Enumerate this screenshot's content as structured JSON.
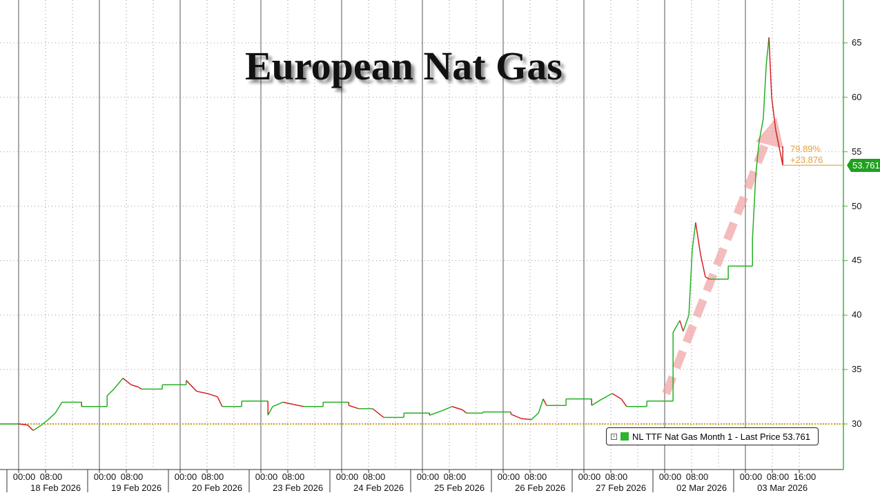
{
  "chart_data": {
    "type": "line",
    "title": "European Nat Gas",
    "ylim": [
      25,
      68
    ],
    "yticks": [
      30,
      35,
      40,
      45,
      50,
      55,
      60,
      65
    ],
    "grid": true,
    "legend_placement": "bottom-right",
    "legend": "NL TTF Nat Gas Month 1 - Last Price 53.761",
    "last_price": "53.761",
    "reference_line": 30.0,
    "annotation_pct": "79.89%",
    "annotation_change": "+23.876",
    "colors": {
      "up": "#22b022",
      "down": "#d02020",
      "axis": "#39b539",
      "reference": "#d4a020",
      "arrow": "#f0a0a0",
      "last_box": "#1fa01f"
    },
    "days": [
      "18 Feb 2026",
      "19 Feb 2026",
      "20 Feb 2026",
      "23 Feb 2026",
      "24 Feb 2026",
      "25 Feb 2026",
      "26 Feb 2026",
      "27 Feb 2026",
      "02 Mar 2026",
      "03 Mar 2026"
    ],
    "hour_labels": [
      "00:00",
      "08:00"
    ],
    "last_day_extra_label": "16:00",
    "points": [
      [
        0,
        0,
        30.0
      ],
      [
        0,
        2.7,
        29.9
      ],
      [
        0,
        4.3,
        29.4
      ],
      [
        0,
        6.8,
        29.9
      ],
      [
        0,
        8.8,
        30.4
      ],
      [
        0,
        10.9,
        31.0
      ],
      [
        0,
        12.9,
        32.0
      ],
      [
        0,
        18.7,
        32.0
      ],
      [
        0,
        18.7,
        31.6
      ],
      [
        1,
        2.3,
        31.6
      ],
      [
        1,
        2.3,
        32.6
      ],
      [
        1,
        4.3,
        33.2
      ],
      [
        1,
        7.0,
        34.2
      ],
      [
        1,
        9.4,
        33.6
      ],
      [
        1,
        11.5,
        33.4
      ],
      [
        1,
        12.5,
        33.2
      ],
      [
        1,
        18.7,
        33.2
      ],
      [
        1,
        18.7,
        33.6
      ],
      [
        2,
        1.8,
        33.6
      ],
      [
        2,
        1.8,
        34.0
      ],
      [
        2,
        4.9,
        33.0
      ],
      [
        2,
        8.0,
        32.8
      ],
      [
        2,
        11.1,
        32.5
      ],
      [
        2,
        12.5,
        31.6
      ],
      [
        2,
        18.3,
        31.6
      ],
      [
        2,
        18.3,
        32.1
      ],
      [
        3,
        2.1,
        32.1
      ],
      [
        3,
        2.1,
        30.8
      ],
      [
        3,
        3.5,
        31.6
      ],
      [
        3,
        6.6,
        32.0
      ],
      [
        3,
        9.6,
        31.8
      ],
      [
        3,
        12.7,
        31.6
      ],
      [
        3,
        18.5,
        31.6
      ],
      [
        3,
        18.5,
        32.0
      ],
      [
        4,
        2.1,
        32.0
      ],
      [
        4,
        2.1,
        31.7
      ],
      [
        4,
        5.1,
        31.4
      ],
      [
        4,
        9.2,
        31.4
      ],
      [
        4,
        12.5,
        30.6
      ],
      [
        4,
        18.5,
        30.6
      ],
      [
        4,
        18.5,
        31.0
      ],
      [
        5,
        2.1,
        31.0
      ],
      [
        5,
        2.1,
        30.8
      ],
      [
        5,
        5.7,
        31.2
      ],
      [
        5,
        8.8,
        31.6
      ],
      [
        5,
        11.9,
        31.3
      ],
      [
        5,
        13.1,
        31.0
      ],
      [
        5,
        18.0,
        31.0
      ],
      [
        5,
        18.0,
        31.1
      ],
      [
        6,
        2.3,
        31.1
      ],
      [
        6,
        2.3,
        30.9
      ],
      [
        6,
        5.3,
        30.5
      ],
      [
        6,
        8.4,
        30.4
      ],
      [
        6,
        10.5,
        31.0
      ],
      [
        6,
        11.9,
        32.3
      ],
      [
        6,
        12.9,
        31.7
      ],
      [
        6,
        18.7,
        31.7
      ],
      [
        6,
        18.7,
        32.3
      ],
      [
        7,
        2.3,
        32.3
      ],
      [
        7,
        2.3,
        31.7
      ],
      [
        7,
        4.9,
        32.2
      ],
      [
        7,
        8.4,
        32.8
      ],
      [
        7,
        11.1,
        32.3
      ],
      [
        7,
        12.7,
        31.6
      ],
      [
        7,
        18.7,
        31.6
      ],
      [
        7,
        18.7,
        32.1
      ],
      [
        8,
        2.5,
        32.1
      ],
      [
        8,
        2.5,
        38.4
      ],
      [
        8,
        4.5,
        39.5
      ],
      [
        8,
        5.5,
        38.5
      ],
      [
        8,
        7.2,
        40.0
      ],
      [
        8,
        8.2,
        46.0
      ],
      [
        8,
        9.2,
        48.5
      ],
      [
        8,
        10.7,
        45.5
      ],
      [
        8,
        12.1,
        43.5
      ],
      [
        8,
        13.3,
        43.3
      ],
      [
        8,
        18.9,
        43.3
      ],
      [
        8,
        18.9,
        44.5
      ],
      [
        9,
        2.1,
        44.5
      ],
      [
        9,
        2.1,
        47.0
      ],
      [
        9,
        3.1,
        53.0
      ],
      [
        9,
        4.1,
        56.0
      ],
      [
        9,
        5.3,
        58.0
      ],
      [
        9,
        6.2,
        63.0
      ],
      [
        9,
        7.0,
        65.5
      ],
      [
        9,
        7.8,
        60.0
      ],
      [
        9,
        9.0,
        57.0
      ],
      [
        9,
        10.3,
        55.0
      ],
      [
        9,
        11.1,
        53.761
      ]
    ]
  }
}
